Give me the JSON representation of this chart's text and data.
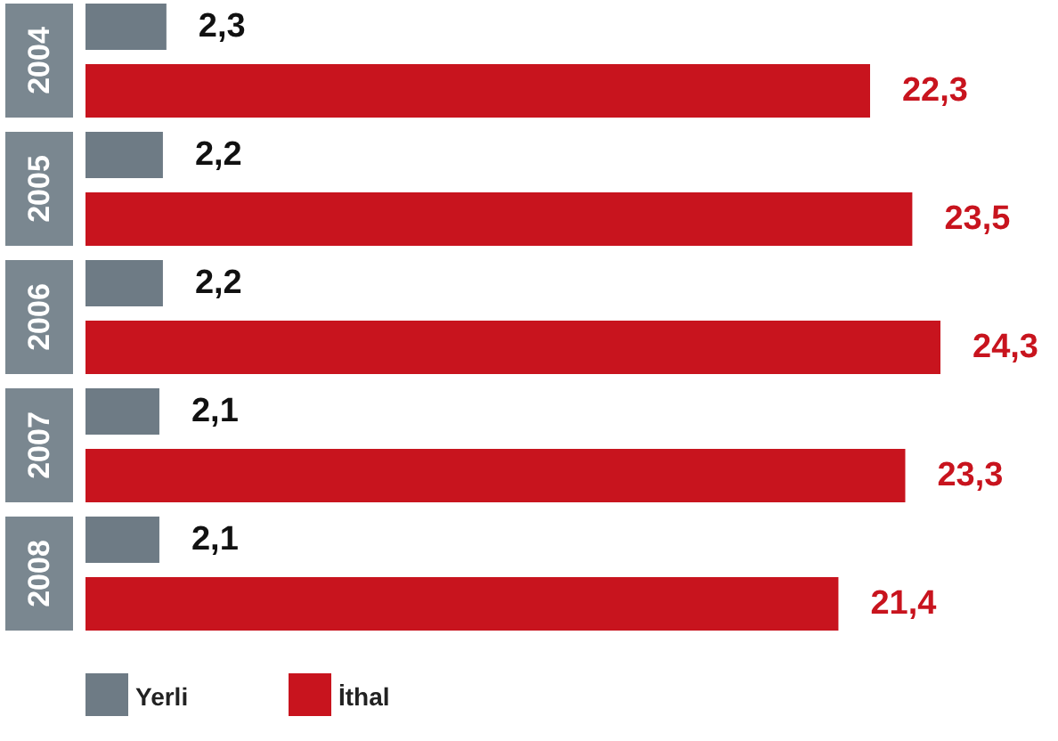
{
  "chart_data": {
    "type": "bar",
    "orientation": "horizontal",
    "categories": [
      "2004",
      "2005",
      "2006",
      "2007",
      "2008"
    ],
    "series": [
      {
        "name": "Yerli",
        "color": "#6e7b85",
        "values": [
          2.3,
          2.2,
          2.2,
          2.1,
          2.1
        ],
        "value_labels": [
          "2,3",
          "2,2",
          "2,2",
          "2,1",
          "2,1"
        ]
      },
      {
        "name": "İthal",
        "color": "#c8141e",
        "values": [
          22.3,
          23.5,
          24.3,
          23.3,
          21.4
        ],
        "value_labels": [
          "22,3",
          "23,5",
          "24,3",
          "23,3",
          "21,4"
        ]
      }
    ],
    "legend": "bottom",
    "grid": false
  }
}
